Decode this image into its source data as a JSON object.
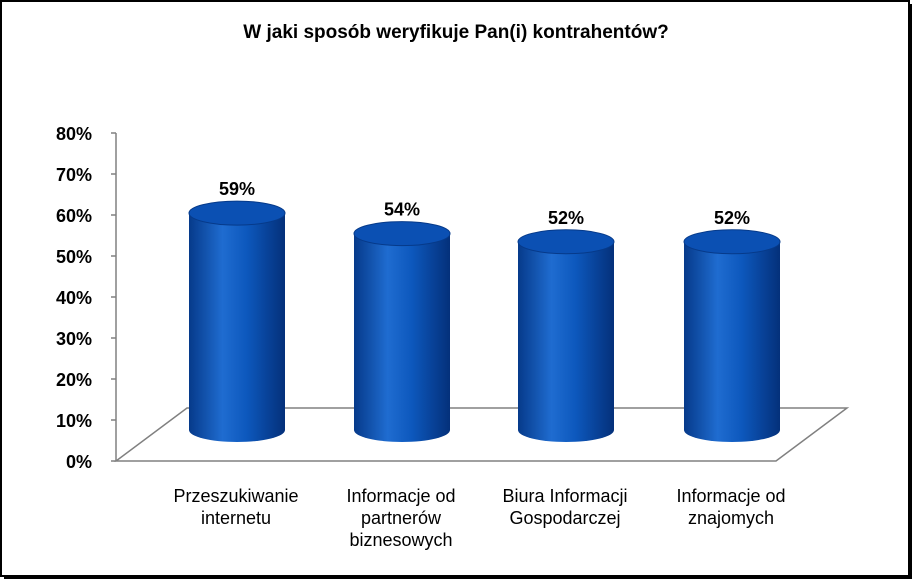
{
  "colors": {
    "bar_fill": "#0a52b8",
    "bar_dark": "#063a8a",
    "bar_top": "#1a5fc2",
    "background": "#ffffff",
    "frame_border": "#000000",
    "floor_line": "#808080"
  },
  "chart_data": {
    "type": "bar",
    "style": "3d-cylinder",
    "title": "W jaki sposób weryfikuje Pan(i) kontrahentów?",
    "xlabel": "",
    "ylabel": "",
    "ylim": [
      0,
      80
    ],
    "ytick_step": 10,
    "ytick_labels": [
      "0%",
      "10%",
      "20%",
      "30%",
      "40%",
      "50%",
      "60%",
      "70%",
      "80%"
    ],
    "grid": false,
    "legend": "none",
    "categories": [
      [
        "Przeszukiwanie",
        "internetu"
      ],
      [
        "Informacje od",
        "partnerów",
        "biznesowych"
      ],
      [
        "Biura Informacji",
        "Gospodarczej"
      ],
      [
        "Informacje od",
        "znajomych"
      ]
    ],
    "values": [
      59,
      54,
      52,
      52
    ],
    "value_labels": [
      "59%",
      "54%",
      "52%",
      "52%"
    ]
  }
}
